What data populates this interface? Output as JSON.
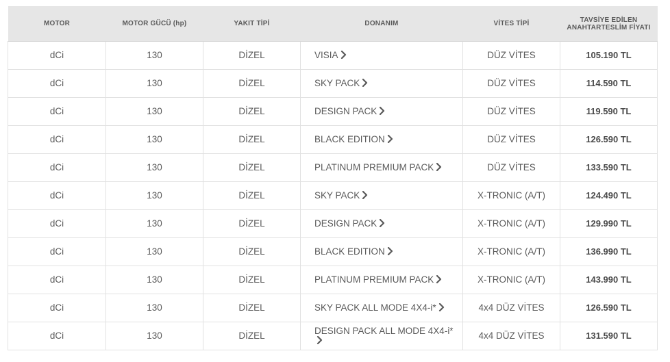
{
  "table": {
    "headers": {
      "motor": "MOTOR",
      "power_main": "MOTOR GÜCÜ",
      "power_unit": "(hp)",
      "fuel": "YAKIT TİPİ",
      "equipment": "DONANIM",
      "transmission": "VİTES TİPİ",
      "price_line1": "TAVSİYE EDİLEN",
      "price_line2": "ANAHTARTESLİM FİYATI"
    },
    "rows": [
      {
        "motor": "dCi",
        "power": "130",
        "fuel": "DİZEL",
        "equipment": "VISIA",
        "transmission": "DÜZ VİTES",
        "price": "105.190 TL"
      },
      {
        "motor": "dCi",
        "power": "130",
        "fuel": "DİZEL",
        "equipment": "SKY PACK",
        "transmission": "DÜZ VİTES",
        "price": "114.590 TL"
      },
      {
        "motor": "dCi",
        "power": "130",
        "fuel": "DİZEL",
        "equipment": "DESIGN PACK",
        "transmission": "DÜZ VİTES",
        "price": "119.590 TL"
      },
      {
        "motor": "dCi",
        "power": "130",
        "fuel": "DİZEL",
        "equipment": "BLACK EDITION",
        "transmission": "DÜZ VİTES",
        "price": "126.590 TL"
      },
      {
        "motor": "dCi",
        "power": "130",
        "fuel": "DİZEL",
        "equipment": "PLATINUM PREMIUM PACK",
        "transmission": "DÜZ VİTES",
        "price": "133.590 TL"
      },
      {
        "motor": "dCi",
        "power": "130",
        "fuel": "DİZEL",
        "equipment": "SKY PACK",
        "transmission": "X-TRONIC (A/T)",
        "price": "124.490 TL"
      },
      {
        "motor": "dCi",
        "power": "130",
        "fuel": "DİZEL",
        "equipment": "DESIGN PACK",
        "transmission": "X-TRONIC (A/T)",
        "price": "129.990 TL"
      },
      {
        "motor": "dCi",
        "power": "130",
        "fuel": "DİZEL",
        "equipment": "BLACK EDITION",
        "transmission": "X-TRONIC (A/T)",
        "price": "136.990 TL"
      },
      {
        "motor": "dCi",
        "power": "130",
        "fuel": "DİZEL",
        "equipment": "PLATINUM PREMIUM PACK",
        "transmission": "X-TRONIC (A/T)",
        "price": "143.990 TL"
      },
      {
        "motor": "dCi",
        "power": "130",
        "fuel": "DİZEL",
        "equipment": "SKY PACK ALL MODE 4X4-i*",
        "transmission": "4x4 DÜZ VİTES",
        "price": "126.590 TL"
      },
      {
        "motor": "dCi",
        "power": "130",
        "fuel": "DİZEL",
        "equipment": "DESIGN PACK ALL MODE 4X4-i*",
        "transmission": "4x4 DÜZ VİTES",
        "price": "131.590 TL"
      }
    ]
  },
  "icons": {
    "row_link": "chevron-right-icon"
  },
  "colors": {
    "header_bg": "#e6e6e6",
    "text": "#5a5a5a",
    "border": "#e1e1e1"
  }
}
